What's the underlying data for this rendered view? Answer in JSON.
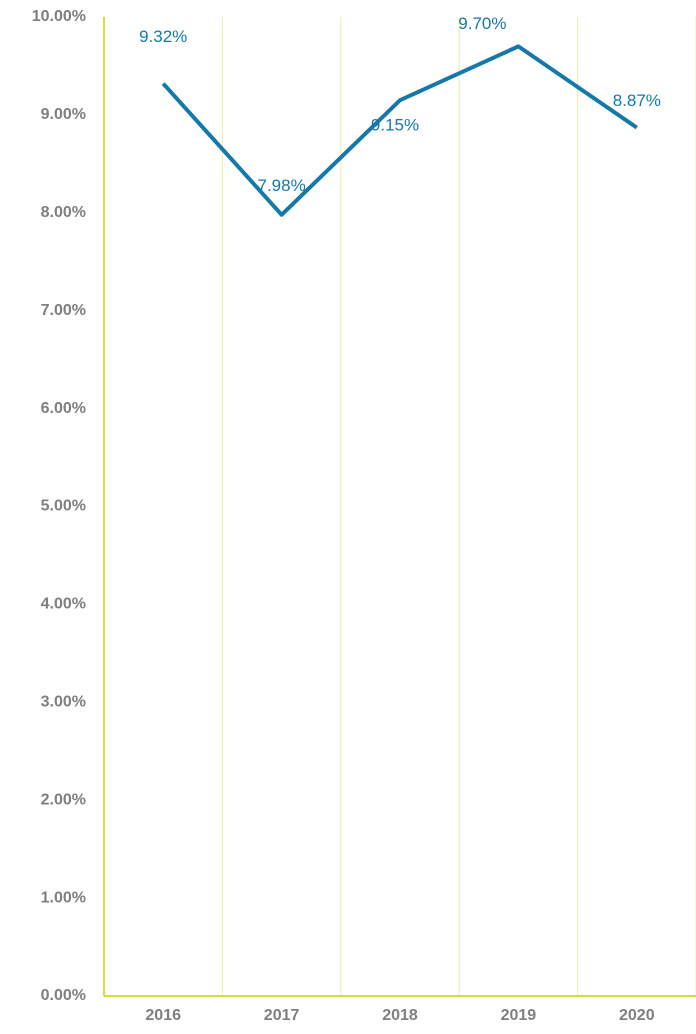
{
  "chart_data": {
    "type": "line",
    "categories": [
      "2016",
      "2017",
      "2018",
      "2019",
      "2020"
    ],
    "series": [
      {
        "color": "#1479a8",
        "values": [
          9.32,
          7.98,
          9.15,
          9.7,
          8.87
        ],
        "value_labels": [
          "9.32%",
          "7.98%",
          "9.15%",
          "9.70%",
          "8.87%"
        ]
      }
    ],
    "ylim": [
      0,
      10
    ],
    "yticks": [
      {
        "value": 0,
        "label": "0.00%"
      },
      {
        "value": 1,
        "label": "1.00%"
      },
      {
        "value": 2,
        "label": "2.00%"
      },
      {
        "value": 3,
        "label": "3.00%"
      },
      {
        "value": 4,
        "label": "4.00%"
      },
      {
        "value": 5,
        "label": "5.00%"
      },
      {
        "value": 6,
        "label": "6.00%"
      },
      {
        "value": 7,
        "label": "7.00%"
      },
      {
        "value": 8,
        "label": "8.00%"
      },
      {
        "value": 9,
        "label": "9.00%"
      },
      {
        "value": 10,
        "label": "10.00%"
      }
    ]
  }
}
